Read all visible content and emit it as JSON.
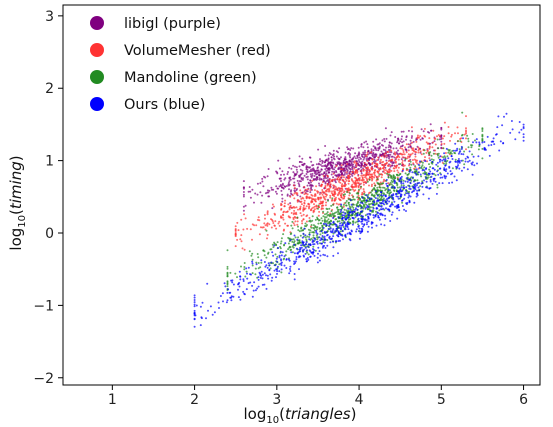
{
  "chart_data": {
    "type": "scatter",
    "xlabel": {
      "base": "log",
      "sub": "10",
      "var": "triangles"
    },
    "ylabel": {
      "base": "log",
      "sub": "10",
      "var": "timing"
    },
    "xlim": [
      0.4,
      6.2
    ],
    "ylim": [
      -2.1,
      3.15
    ],
    "x_ticks": [
      1,
      2,
      3,
      4,
      5,
      6
    ],
    "y_ticks": [
      -2,
      -1,
      0,
      1,
      2,
      3
    ],
    "legend_position": "top-left",
    "grid": false,
    "series": [
      {
        "name": "libigl (purple)",
        "color": "#800080",
        "trend": {
          "x_start": 2.6,
          "x_end": 5.0,
          "y_at_start": 0.52,
          "slope": 0.33,
          "spread": 0.12
        }
      },
      {
        "name": "VolumeMesher (red)",
        "color": "#ff3333",
        "trend": {
          "x_start": 2.5,
          "x_end": 5.3,
          "y_at_start": -0.05,
          "slope": 0.52,
          "spread": 0.12
        }
      },
      {
        "name": "Mandoline (green)",
        "color": "#228b22",
        "trend": {
          "x_start": 2.4,
          "x_end": 5.5,
          "y_at_start": -0.62,
          "slope": 0.62,
          "spread": 0.12
        }
      },
      {
        "name": "Ours (blue)",
        "color": "#0000ff",
        "trend": {
          "x_start": 2.0,
          "x_end": 6.0,
          "y_at_start": -1.1,
          "slope": 0.65,
          "spread": 0.13
        }
      }
    ]
  }
}
